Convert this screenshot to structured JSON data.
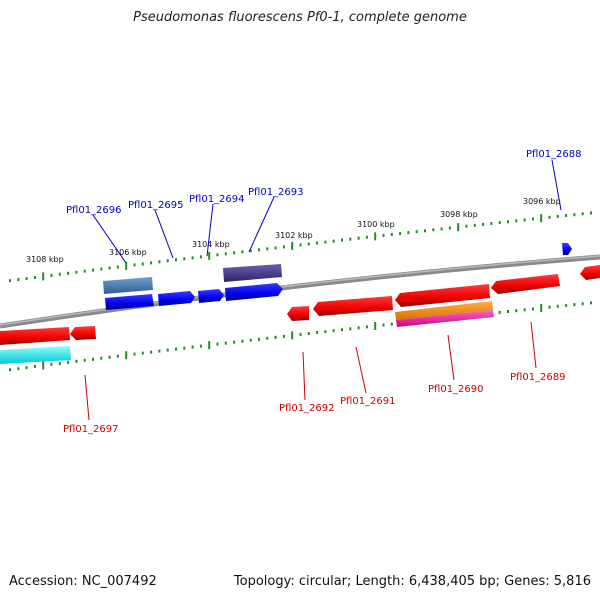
{
  "title": "Pseudomonas fluorescens Pf0-1, complete genome",
  "footer": {
    "accession": "Accession: NC_007492",
    "summary": "Topology: circular; Length: 6,438,405 bp; Genes: 5,816"
  },
  "ruler_labels": [
    "3108 kbp",
    "3106 kbp",
    "3104 kbp",
    "3102 kbp",
    "3100 kbp",
    "3098 kbp",
    "3096 kbp"
  ],
  "forward_genes": [
    "Pfl01_2696",
    "Pfl01_2695",
    "Pfl01_2694",
    "Pfl01_2693",
    "Pfl01_2688"
  ],
  "reverse_genes": [
    "Pfl01_2697",
    "Pfl01_2692",
    "Pfl01_2691",
    "Pfl01_2690",
    "Pfl01_2689"
  ],
  "colors": {
    "forward_label": "#0000cc",
    "reverse_label": "#cc0000",
    "backbone": "#808080",
    "ticks": "#228b22",
    "forward_cds": "#0000ff",
    "reverse_cds": "#ff0000",
    "gene_steelblue": "#4682b4",
    "gene_darkslate": "#483d8b",
    "gene_cyan": "#00ffff",
    "gene_orange": "#ff8c00",
    "gene_magenta": "#ff1493"
  }
}
